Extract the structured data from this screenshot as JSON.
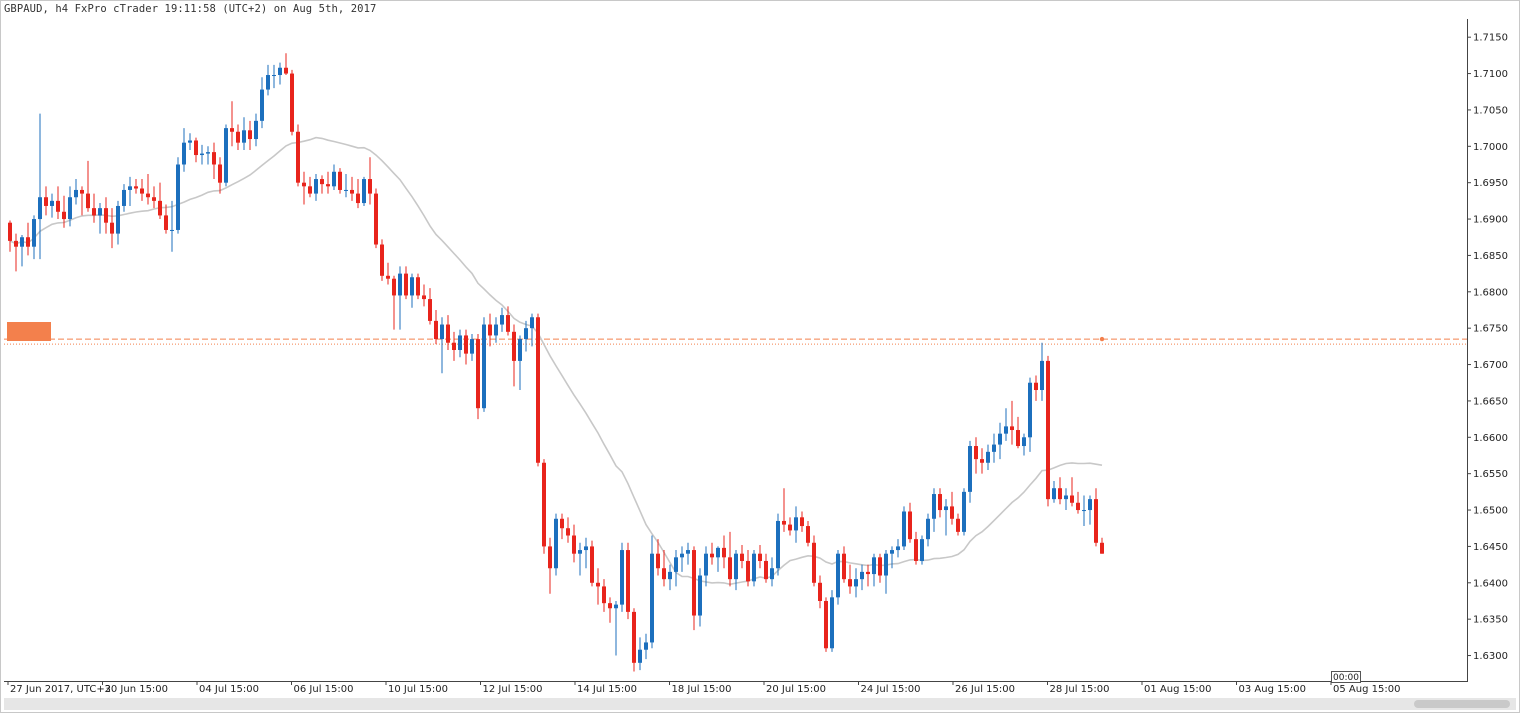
{
  "title": "GBPAUD, h4 FxPro cTrader 19:11:58 (UTC+2) on Aug 5th, 2017",
  "time_marker": "00:00",
  "colors": {
    "bull": "#1c6fbd",
    "bear": "#e8241c",
    "ma": "#c8c8c8",
    "level": "#f3804c"
  },
  "chart_data": {
    "type": "candlestick",
    "symbol": "GBPAUD",
    "timeframe": "h4",
    "ylim": [
      1.6265,
      1.7175
    ],
    "yticks": [
      "1.7150",
      "1.7100",
      "1.7050",
      "1.7000",
      "1.6950",
      "1.6900",
      "1.6850",
      "1.6800",
      "1.6750",
      "1.6700",
      "1.6650",
      "1.6600",
      "1.6550",
      "1.6500",
      "1.6450",
      "1.6400",
      "1.6350",
      "1.6300"
    ],
    "xticks": [
      "27 Jun 2017, UTC+2",
      "30 Jun 15:00",
      "04 Jul 15:00",
      "06 Jul 15:00",
      "10 Jul 15:00",
      "12 Jul 15:00",
      "14 Jul 15:00",
      "18 Jul 15:00",
      "20 Jul 15:00",
      "24 Jul 15:00",
      "26 Jul 15:00",
      "28 Jul 15:00",
      "01 Aug 15:00",
      "03 Aug 15:00",
      "05 Aug 15:00"
    ],
    "horizontal_levels": [
      1.6735,
      1.6728
    ],
    "candles": [
      [
        1.6895,
        1.6898,
        1.6855,
        1.687
      ],
      [
        1.687,
        1.688,
        1.6828,
        1.6862
      ],
      [
        1.6862,
        1.6878,
        1.6835,
        1.6875
      ],
      [
        1.6875,
        1.6895,
        1.685,
        1.6862
      ],
      [
        1.6862,
        1.6905,
        1.6845,
        1.69
      ],
      [
        1.69,
        1.7045,
        1.6845,
        1.693
      ],
      [
        1.693,
        1.6945,
        1.6905,
        1.6918
      ],
      [
        1.6918,
        1.6935,
        1.6902,
        1.6925
      ],
      [
        1.6925,
        1.6945,
        1.69,
        1.691
      ],
      [
        1.691,
        1.6932,
        1.6888,
        1.69
      ],
      [
        1.69,
        1.6945,
        1.689,
        1.693
      ],
      [
        1.693,
        1.6955,
        1.692,
        1.694
      ],
      [
        1.694,
        1.6945,
        1.6905,
        1.6935
      ],
      [
        1.6935,
        1.698,
        1.691,
        1.6915
      ],
      [
        1.6915,
        1.6935,
        1.6895,
        1.6905
      ],
      [
        1.6905,
        1.6922,
        1.688,
        1.6915
      ],
      [
        1.6915,
        1.693,
        1.688,
        1.6895
      ],
      [
        1.6895,
        1.6915,
        1.686,
        1.688
      ],
      [
        1.688,
        1.6925,
        1.6865,
        1.6918
      ],
      [
        1.6918,
        1.6948,
        1.691,
        1.694
      ],
      [
        1.694,
        1.6958,
        1.6918,
        1.6945
      ],
      [
        1.6945,
        1.6955,
        1.6935,
        1.6942
      ],
      [
        1.6942,
        1.6955,
        1.6925,
        1.6935
      ],
      [
        1.6935,
        1.6962,
        1.692,
        1.693
      ],
      [
        1.693,
        1.6945,
        1.6915,
        1.6925
      ],
      [
        1.6925,
        1.695,
        1.69,
        1.6905
      ],
      [
        1.6905,
        1.692,
        1.688,
        1.6885
      ],
      [
        1.6885,
        1.6925,
        1.6855,
        1.6885
      ],
      [
        1.6885,
        1.6985,
        1.688,
        1.6975
      ],
      [
        1.6975,
        1.7025,
        1.6965,
        1.7005
      ],
      [
        1.7005,
        1.7018,
        1.6995,
        1.7008
      ],
      [
        1.7008,
        1.7012,
        1.6978,
        1.6988
      ],
      [
        1.6988,
        1.7002,
        1.6975,
        1.699
      ],
      [
        1.699,
        1.7,
        1.6975,
        1.6992
      ],
      [
        1.6992,
        1.7005,
        1.6955,
        1.6975
      ],
      [
        1.6975,
        1.6985,
        1.6935,
        1.695
      ],
      [
        1.695,
        1.703,
        1.6945,
        1.7025
      ],
      [
        1.7025,
        1.7062,
        1.7,
        1.702
      ],
      [
        1.702,
        1.703,
        1.6995,
        1.7005
      ],
      [
        1.7005,
        1.704,
        1.6995,
        1.7022
      ],
      [
        1.7022,
        1.7035,
        1.6995,
        1.701
      ],
      [
        1.701,
        1.7045,
        1.7,
        1.7035
      ],
      [
        1.7035,
        1.7095,
        1.7025,
        1.7078
      ],
      [
        1.7078,
        1.7112,
        1.707,
        1.7098
      ],
      [
        1.7098,
        1.7112,
        1.708,
        1.7098
      ],
      [
        1.7098,
        1.7115,
        1.7085,
        1.7108
      ],
      [
        1.7108,
        1.7128,
        1.7098,
        1.71
      ],
      [
        1.71,
        1.7105,
        1.7015,
        1.702
      ],
      [
        1.702,
        1.703,
        1.6945,
        1.695
      ],
      [
        1.695,
        1.6965,
        1.692,
        1.6945
      ],
      [
        1.6945,
        1.6958,
        1.693,
        1.6935
      ],
      [
        1.6935,
        1.6962,
        1.6925,
        1.6955
      ],
      [
        1.6955,
        1.696,
        1.6935,
        1.6948
      ],
      [
        1.6948,
        1.6965,
        1.6935,
        1.6945
      ],
      [
        1.6945,
        1.6975,
        1.694,
        1.6965
      ],
      [
        1.6965,
        1.697,
        1.6935,
        1.694
      ],
      [
        1.694,
        1.6962,
        1.693,
        1.694
      ],
      [
        1.694,
        1.6958,
        1.6925,
        1.6935
      ],
      [
        1.6935,
        1.6955,
        1.6915,
        1.6922
      ],
      [
        1.6922,
        1.6958,
        1.6918,
        1.6955
      ],
      [
        1.6955,
        1.6985,
        1.692,
        1.6935
      ],
      [
        1.6935,
        1.6942,
        1.686,
        1.6865
      ],
      [
        1.6865,
        1.6872,
        1.6815,
        1.6822
      ],
      [
        1.6822,
        1.684,
        1.681,
        1.6818
      ],
      [
        1.6818,
        1.6822,
        1.6748,
        1.6795
      ],
      [
        1.6795,
        1.6835,
        1.6748,
        1.6825
      ],
      [
        1.6825,
        1.6835,
        1.679,
        1.6795
      ],
      [
        1.6795,
        1.6825,
        1.6778,
        1.682
      ],
      [
        1.682,
        1.6825,
        1.679,
        1.6795
      ],
      [
        1.6795,
        1.681,
        1.678,
        1.679
      ],
      [
        1.679,
        1.6805,
        1.6755,
        1.676
      ],
      [
        1.676,
        1.6775,
        1.6728,
        1.6735
      ],
      [
        1.6735,
        1.6765,
        1.6688,
        1.6755
      ],
      [
        1.6755,
        1.6768,
        1.672,
        1.673
      ],
      [
        1.673,
        1.6745,
        1.6705,
        1.672
      ],
      [
        1.672,
        1.6748,
        1.671,
        1.674
      ],
      [
        1.674,
        1.6748,
        1.67,
        1.6715
      ],
      [
        1.6715,
        1.6742,
        1.6705,
        1.6735
      ],
      [
        1.6735,
        1.6742,
        1.6625,
        1.664
      ],
      [
        1.664,
        1.6765,
        1.6635,
        1.6755
      ],
      [
        1.6755,
        1.677,
        1.6725,
        1.674
      ],
      [
        1.674,
        1.6765,
        1.673,
        1.6755
      ],
      [
        1.6755,
        1.6778,
        1.6745,
        1.6768
      ],
      [
        1.6768,
        1.678,
        1.674,
        1.6745
      ],
      [
        1.6745,
        1.6755,
        1.667,
        1.6705
      ],
      [
        1.6705,
        1.674,
        1.6665,
        1.6735
      ],
      [
        1.6735,
        1.676,
        1.6718,
        1.675
      ],
      [
        1.675,
        1.677,
        1.6725,
        1.6765
      ],
      [
        1.6765,
        1.677,
        1.656,
        1.6565
      ],
      [
        1.6565,
        1.657,
        1.644,
        1.645
      ],
      [
        1.645,
        1.6462,
        1.6385,
        1.642
      ],
      [
        1.642,
        1.6495,
        1.641,
        1.6488
      ],
      [
        1.6488,
        1.6495,
        1.646,
        1.6475
      ],
      [
        1.6475,
        1.649,
        1.6455,
        1.6465
      ],
      [
        1.6465,
        1.648,
        1.6428,
        1.644
      ],
      [
        1.644,
        1.6455,
        1.641,
        1.6445
      ],
      [
        1.6445,
        1.6462,
        1.642,
        1.645
      ],
      [
        1.645,
        1.6458,
        1.6395,
        1.64
      ],
      [
        1.64,
        1.642,
        1.637,
        1.6395
      ],
      [
        1.6395,
        1.6405,
        1.636,
        1.6372
      ],
      [
        1.6372,
        1.638,
        1.6345,
        1.6365
      ],
      [
        1.6365,
        1.6375,
        1.63,
        1.637
      ],
      [
        1.637,
        1.6455,
        1.636,
        1.6445
      ],
      [
        1.6445,
        1.6455,
        1.635,
        1.636
      ],
      [
        1.636,
        1.6365,
        1.6278,
        1.629
      ],
      [
        1.629,
        1.6325,
        1.628,
        1.6308
      ],
      [
        1.6308,
        1.633,
        1.6295,
        1.6318
      ],
      [
        1.6318,
        1.6465,
        1.631,
        1.644
      ],
      [
        1.644,
        1.646,
        1.641,
        1.642
      ],
      [
        1.642,
        1.6445,
        1.6395,
        1.6405
      ],
      [
        1.6405,
        1.6425,
        1.639,
        1.6415
      ],
      [
        1.6415,
        1.6445,
        1.6395,
        1.6435
      ],
      [
        1.6435,
        1.645,
        1.6415,
        1.644
      ],
      [
        1.644,
        1.6455,
        1.6425,
        1.6445
      ],
      [
        1.6445,
        1.645,
        1.6335,
        1.6355
      ],
      [
        1.6355,
        1.642,
        1.634,
        1.641
      ],
      [
        1.641,
        1.645,
        1.6395,
        1.644
      ],
      [
        1.644,
        1.6455,
        1.6425,
        1.6435
      ],
      [
        1.6435,
        1.645,
        1.6415,
        1.6448
      ],
      [
        1.6448,
        1.6465,
        1.642,
        1.6435
      ],
      [
        1.6435,
        1.647,
        1.6395,
        1.6405
      ],
      [
        1.6405,
        1.6445,
        1.639,
        1.644
      ],
      [
        1.644,
        1.6452,
        1.642,
        1.643
      ],
      [
        1.643,
        1.6445,
        1.6395,
        1.6402
      ],
      [
        1.6402,
        1.6445,
        1.6395,
        1.644
      ],
      [
        1.644,
        1.6452,
        1.642,
        1.643
      ],
      [
        1.643,
        1.644,
        1.64,
        1.6405
      ],
      [
        1.6405,
        1.6435,
        1.6395,
        1.642
      ],
      [
        1.642,
        1.6495,
        1.641,
        1.6485
      ],
      [
        1.6485,
        1.653,
        1.647,
        1.648
      ],
      [
        1.648,
        1.649,
        1.6465,
        1.6472
      ],
      [
        1.6472,
        1.6505,
        1.6455,
        1.649
      ],
      [
        1.649,
        1.6498,
        1.647,
        1.6478
      ],
      [
        1.6478,
        1.6485,
        1.645,
        1.6455
      ],
      [
        1.6455,
        1.6465,
        1.6395,
        1.64
      ],
      [
        1.64,
        1.641,
        1.6365,
        1.6375
      ],
      [
        1.6375,
        1.638,
        1.6305,
        1.631
      ],
      [
        1.631,
        1.639,
        1.6305,
        1.638
      ],
      [
        1.638,
        1.6445,
        1.637,
        1.644
      ],
      [
        1.644,
        1.645,
        1.64,
        1.6405
      ],
      [
        1.6405,
        1.6425,
        1.6385,
        1.6395
      ],
      [
        1.6395,
        1.642,
        1.638,
        1.6405
      ],
      [
        1.6405,
        1.6425,
        1.639,
        1.6415
      ],
      [
        1.6415,
        1.6425,
        1.6395,
        1.6412
      ],
      [
        1.6412,
        1.644,
        1.6395,
        1.6435
      ],
      [
        1.6435,
        1.644,
        1.64,
        1.641
      ],
      [
        1.641,
        1.6445,
        1.6385,
        1.644
      ],
      [
        1.644,
        1.645,
        1.642,
        1.6445
      ],
      [
        1.6445,
        1.646,
        1.6435,
        1.645
      ],
      [
        1.645,
        1.6505,
        1.6445,
        1.6498
      ],
      [
        1.6498,
        1.651,
        1.6455,
        1.646
      ],
      [
        1.646,
        1.647,
        1.6425,
        1.643
      ],
      [
        1.643,
        1.6465,
        1.6425,
        1.646
      ],
      [
        1.646,
        1.6495,
        1.645,
        1.6488
      ],
      [
        1.6488,
        1.653,
        1.647,
        1.6522
      ],
      [
        1.6522,
        1.653,
        1.649,
        1.65
      ],
      [
        1.65,
        1.6515,
        1.6465,
        1.6505
      ],
      [
        1.6505,
        1.6525,
        1.648,
        1.6488
      ],
      [
        1.6488,
        1.6495,
        1.6465,
        1.647
      ],
      [
        1.647,
        1.653,
        1.6465,
        1.6525
      ],
      [
        1.6525,
        1.6595,
        1.651,
        1.6588
      ],
      [
        1.6588,
        1.66,
        1.655,
        1.657
      ],
      [
        1.657,
        1.6585,
        1.655,
        1.6565
      ],
      [
        1.6565,
        1.659,
        1.6555,
        1.658
      ],
      [
        1.658,
        1.6605,
        1.6565,
        1.659
      ],
      [
        1.659,
        1.662,
        1.657,
        1.6605
      ],
      [
        1.6605,
        1.664,
        1.6595,
        1.6615
      ],
      [
        1.6615,
        1.665,
        1.659,
        1.661
      ],
      [
        1.661,
        1.6628,
        1.6585,
        1.6588
      ],
      [
        1.6588,
        1.6605,
        1.6575,
        1.66
      ],
      [
        1.66,
        1.6682,
        1.658,
        1.6675
      ],
      [
        1.6675,
        1.6685,
        1.665,
        1.6665
      ],
      [
        1.6665,
        1.673,
        1.665,
        1.6705
      ],
      [
        1.6705,
        1.6712,
        1.6505,
        1.6515
      ],
      [
        1.6515,
        1.654,
        1.651,
        1.653
      ],
      [
        1.653,
        1.6545,
        1.6508,
        1.6515
      ],
      [
        1.6515,
        1.653,
        1.65,
        1.652
      ],
      [
        1.652,
        1.6545,
        1.6505,
        1.651
      ],
      [
        1.651,
        1.6525,
        1.6495,
        1.65
      ],
      [
        1.65,
        1.652,
        1.6478,
        1.65
      ],
      [
        1.65,
        1.652,
        1.648,
        1.6515
      ],
      [
        1.6515,
        1.653,
        1.645,
        1.6455
      ],
      [
        1.6455,
        1.6462,
        1.644,
        1.644
      ]
    ],
    "ma_period": 24
  }
}
